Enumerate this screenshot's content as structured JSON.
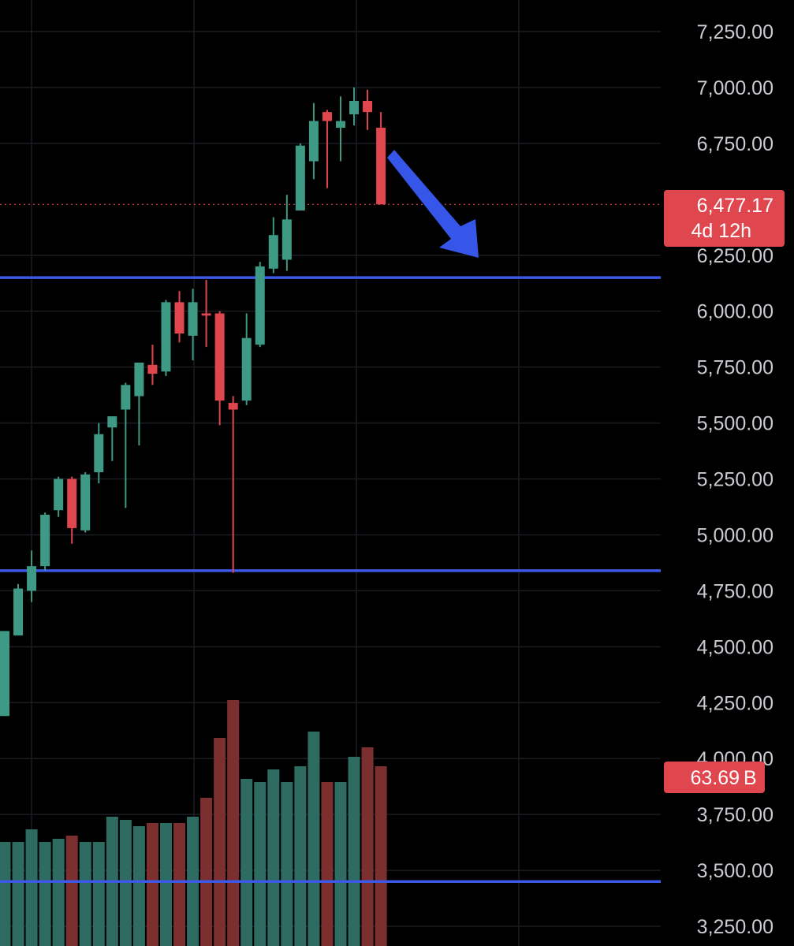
{
  "chart_data": {
    "type": "candlestick",
    "price_scale": {
      "ticks": [
        7250,
        7000,
        6750,
        6250,
        6000,
        5750,
        5500,
        5250,
        5000,
        4750,
        4500,
        4250,
        4000,
        3750,
        3500,
        3250
      ],
      "tick_labels": [
        "7,250.00",
        "7,000.00",
        "6,750.00",
        "6,250.00",
        "6,000.00",
        "5,750.00",
        "5,500.00",
        "5,250.00",
        "5,000.00",
        "4,750.00",
        "4,500.00",
        "4,250.00",
        "4,000.00",
        "3,750.00",
        "3,500.00",
        "3,250.00"
      ],
      "range": [
        3170,
        7400
      ]
    },
    "candles": [
      {
        "o": 4190,
        "h": 4570,
        "l": 4190,
        "c": 4570
      },
      {
        "o": 4550,
        "h": 4780,
        "l": 4550,
        "c": 4760
      },
      {
        "o": 4750,
        "h": 4930,
        "l": 4700,
        "c": 4860
      },
      {
        "o": 4860,
        "h": 5100,
        "l": 4840,
        "c": 5090
      },
      {
        "o": 5110,
        "h": 5260,
        "l": 5080,
        "c": 5250
      },
      {
        "o": 5250,
        "h": 5260,
        "l": 4960,
        "c": 5030
      },
      {
        "o": 5020,
        "h": 5280,
        "l": 5010,
        "c": 5270
      },
      {
        "o": 5280,
        "h": 5500,
        "l": 5230,
        "c": 5450
      },
      {
        "o": 5480,
        "h": 5530,
        "l": 5330,
        "c": 5530
      },
      {
        "o": 5560,
        "h": 5680,
        "l": 5120,
        "c": 5670
      },
      {
        "o": 5620,
        "h": 5770,
        "l": 5400,
        "c": 5770
      },
      {
        "o": 5760,
        "h": 5850,
        "l": 5670,
        "c": 5720
      },
      {
        "o": 5730,
        "h": 6050,
        "l": 5710,
        "c": 6040
      },
      {
        "o": 6040,
        "h": 6090,
        "l": 5860,
        "c": 5900
      },
      {
        "o": 5890,
        "h": 6100,
        "l": 5780,
        "c": 6040
      },
      {
        "o": 5990,
        "h": 6140,
        "l": 5840,
        "c": 5980
      },
      {
        "o": 5990,
        "h": 6000,
        "l": 5490,
        "c": 5600
      },
      {
        "o": 5590,
        "h": 5620,
        "l": 4830,
        "c": 5560
      },
      {
        "o": 5600,
        "h": 5990,
        "l": 5580,
        "c": 5880
      },
      {
        "o": 5850,
        "h": 6220,
        "l": 5840,
        "c": 6200
      },
      {
        "o": 6190,
        "h": 6420,
        "l": 6170,
        "c": 6340
      },
      {
        "o": 6230,
        "h": 6520,
        "l": 6180,
        "c": 6410
      },
      {
        "o": 6450,
        "h": 6750,
        "l": 6450,
        "c": 6740
      },
      {
        "o": 6670,
        "h": 6930,
        "l": 6590,
        "c": 6850
      },
      {
        "o": 6890,
        "h": 6900,
        "l": 6550,
        "c": 6850
      },
      {
        "o": 6820,
        "h": 6960,
        "l": 6670,
        "c": 6850
      },
      {
        "o": 6880,
        "h": 7000,
        "l": 6830,
        "c": 6940
      },
      {
        "o": 6940,
        "h": 6990,
        "l": 6810,
        "c": 6890
      },
      {
        "o": 6820,
        "h": 6890,
        "l": 6477.17,
        "c": 6477.17
      }
    ],
    "volume": [
      28,
      28,
      32,
      28,
      29,
      30,
      28,
      28,
      36,
      35,
      33,
      34,
      34,
      34,
      36,
      42,
      61,
      73,
      48,
      47,
      51,
      47,
      52,
      63,
      47,
      47,
      55,
      58,
      52
    ],
    "horizontal_lines": [
      6150,
      4840,
      3450
    ],
    "current_price": 6477.17,
    "current_price_label": "6,477.17",
    "countdown_label": "4d 12h",
    "volume_label": "63.69",
    "volume_suffix": "B",
    "colors": {
      "up": "#3e9a85",
      "down": "#e0464e",
      "up_volume": "#2e6b60",
      "down_volume": "#7b2f2f",
      "line": "#3d57e6",
      "arrow": "#3556e8",
      "badge": "#e0464e",
      "background": "#000000",
      "grid": "#1b1d22",
      "axis_text": "#c9cbd1"
    }
  }
}
